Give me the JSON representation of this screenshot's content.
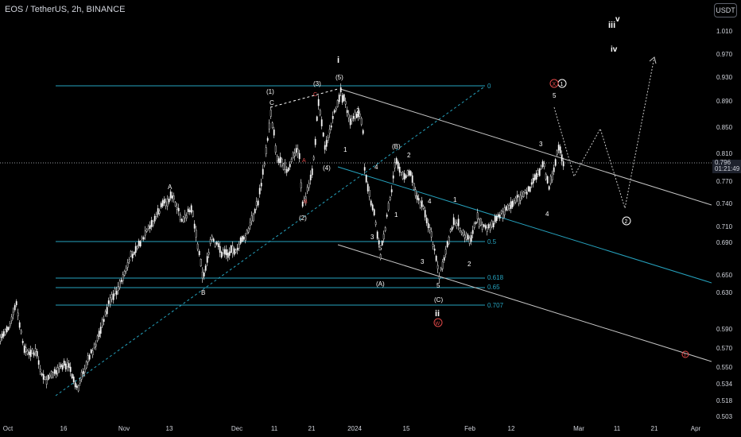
{
  "header": {
    "title": "EOS / TetherUS, 2h, BINANCE"
  },
  "currency_button": "USDT",
  "price_tag": {
    "price": "0.796",
    "countdown": "01:21:49"
  },
  "y_axis": {
    "ticks": [
      "1.010",
      "0.970",
      "0.930",
      "0.890",
      "0.850",
      "0.810",
      "0.770",
      "0.740",
      "0.710",
      "0.690",
      "0.650",
      "0.630",
      "0.590",
      "0.570",
      "0.550",
      "0.534",
      "0.518",
      "0.503"
    ]
  },
  "x_axis": {
    "ticks": [
      "Oct",
      "16",
      "Nov",
      "13",
      "Dec",
      "11",
      "21",
      "2024",
      "15",
      "Feb",
      "12",
      "Mar",
      "11",
      "21",
      "Apr"
    ]
  },
  "fib_levels": [
    "0",
    "0.5",
    "0.618",
    "0.65",
    "0.707"
  ],
  "wave_labels": {
    "i": "i",
    "ii": "ii",
    "iii": "iii",
    "iv": "iv",
    "v": "v",
    "w1": "(1)",
    "w2": "(2)",
    "w3": "(3)",
    "w4": "(4)",
    "w5": "(5)",
    "A": "A",
    "B": "B",
    "C": "C",
    "pA": "(A)",
    "pB": "(B)",
    "pC": "(C)",
    "n1": "1",
    "n2": "2",
    "n3": "3",
    "n4": "4",
    "n5": "5",
    "circ1": "1",
    "circ2": "2",
    "redX": "X",
    "redW": "W",
    "redY": "Y"
  },
  "colors": {
    "background": "#000000",
    "candle": "#ffffff",
    "fib": "#26a3bf",
    "channel": "#c8c8c8",
    "text": "#d1d4dc",
    "red": "#e04848"
  }
}
